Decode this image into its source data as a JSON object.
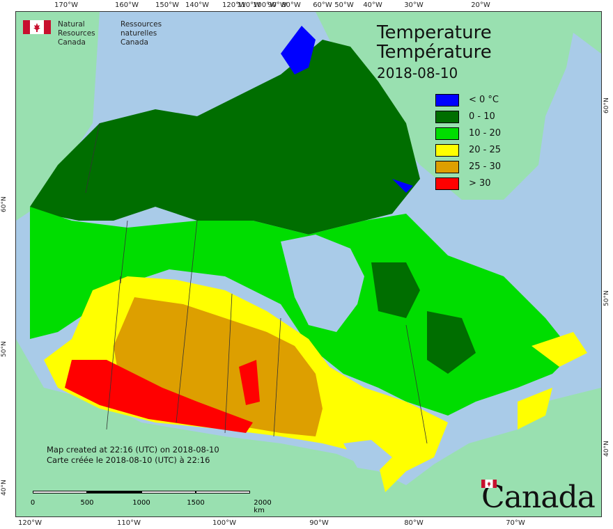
{
  "logo": {
    "text_en_1": "Natural Resources",
    "text_en_2": "Canada",
    "text_fr_1": "Ressources naturelles",
    "text_fr_2": "Canada"
  },
  "title": {
    "line1": "Temperature",
    "line2": "Température",
    "date": "2018-08-10"
  },
  "legend": [
    {
      "label": "< 0 °C",
      "color": "#0000ff"
    },
    {
      "label": "0 - 10",
      "color": "#006e00"
    },
    {
      "label": "10 - 20",
      "color": "#00dd00"
    },
    {
      "label": "20 - 25",
      "color": "#ffff00"
    },
    {
      "label": "25 - 30",
      "color": "#dd9f00"
    },
    {
      "label": "> 30",
      "color": "#ff0000"
    }
  ],
  "credit": {
    "line1": "Map created at 22:16 (UTC) on 2018-08-10",
    "line2": "Carte créée le 2018-08-10 (UTC) à 22:16"
  },
  "scale": {
    "labels": [
      "0",
      "500",
      "1000",
      "1500",
      "2000 km"
    ]
  },
  "wordmark": "Canada",
  "ticks": {
    "top": [
      "170°W",
      "160°W",
      "150°W",
      "140°W",
      "120°W",
      "110°W",
      "100°W",
      "90°W",
      "80°W",
      "60°W",
      "50°W",
      "40°W",
      "30°W",
      "20°W"
    ],
    "bottom": [
      "120°W",
      "110°W",
      "100°W",
      "90°W",
      "80°W",
      "70°W"
    ],
    "left": [
      "60°N",
      "50°N",
      "40°N"
    ],
    "right": [
      "60°N",
      "50°N",
      "40°N"
    ]
  },
  "colors": {
    "water": "#a9cbe8",
    "other_land": "#99e0b0",
    "outline": "#333333"
  }
}
